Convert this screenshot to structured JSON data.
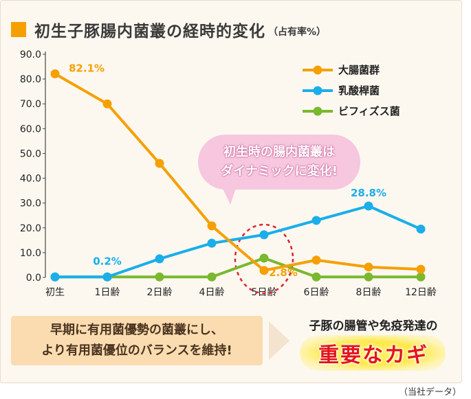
{
  "header": {
    "title": "初生子豚腸内菌叢の経時的変化",
    "subtitle": "（占有率%）"
  },
  "chart_data": {
    "type": "line",
    "title": "初生子豚腸内菌叢の経時的変化",
    "subtitle": "（占有率%）",
    "categories": [
      "初生",
      "1日齢",
      "2日齢",
      "4日齢",
      "5日齢",
      "6日齢",
      "8日齢",
      "12日齢"
    ],
    "ylim": [
      0,
      90
    ],
    "yticks": [
      "0.0",
      "10.0",
      "20.0",
      "30.0",
      "40.0",
      "50.0",
      "60.0",
      "70.0",
      "80.0",
      "90.0"
    ],
    "grid": false,
    "legend_position": "top-right",
    "series": [
      {
        "name": "大腸菌群",
        "color": "#f5a000",
        "values": [
          82.1,
          70.0,
          46.0,
          20.8,
          2.8,
          7.0,
          4.2,
          3.3
        ]
      },
      {
        "name": "乳酸桿菌",
        "color": "#1aaeea",
        "values": [
          0.2,
          0.2,
          7.5,
          13.8,
          17.2,
          23.0,
          28.8,
          19.5
        ]
      },
      {
        "name": "ビフィズス菌",
        "color": "#7ab82e",
        "values": [
          0.2,
          0.2,
          0.2,
          0.2,
          7.8,
          0.2,
          0.2,
          0.2
        ]
      }
    ],
    "data_labels": [
      {
        "text": "82.1%",
        "series": 0,
        "index": 0,
        "color": "#f5a000"
      },
      {
        "text": "0.2%",
        "series": 1,
        "index": 1,
        "color": "#1aaeea"
      },
      {
        "text": "2.8%",
        "series": 0,
        "index": 4,
        "color": "#f5a000"
      },
      {
        "text": "28.8%",
        "series": 1,
        "index": 6,
        "color": "#1aaeea"
      }
    ],
    "highlight_index": 4
  },
  "callout": {
    "line1": "初生時の腸内菌叢は",
    "line2": "ダイナミックに変化!"
  },
  "bottom": {
    "line1": "早期に有用菌優勢の菌叢にし、",
    "line2": "より有用菌優位のバランスを維持!"
  },
  "key": {
    "sub": "子豚の腸管や免疫発達の",
    "main": "重要なカギ"
  },
  "source": "（当社データ）"
}
